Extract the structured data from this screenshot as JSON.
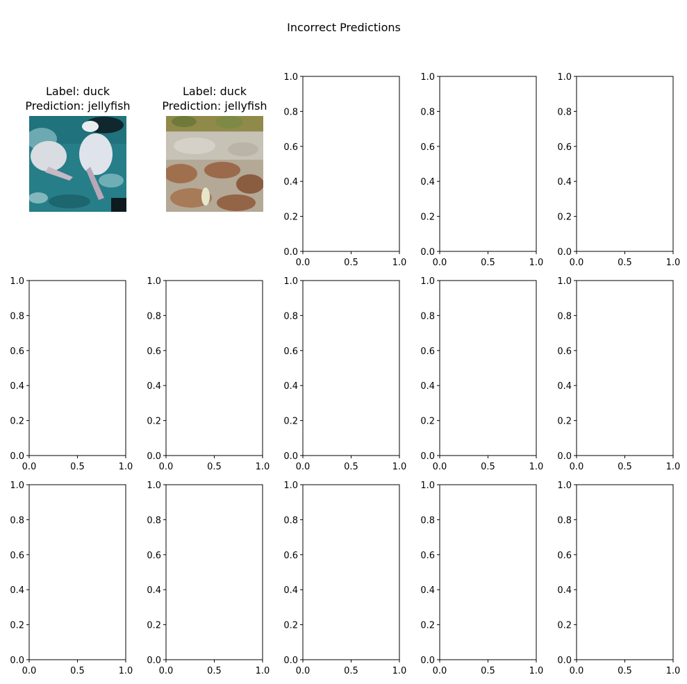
{
  "figure": {
    "suptitle": "Incorrect Predictions"
  },
  "chart_data": {
    "type": "image-grid",
    "title": "Incorrect Predictions",
    "rows": 3,
    "cols": 5,
    "image_panels": [
      {
        "title_line1": "Label: duck",
        "title_line2": "Prediction: jellyfish",
        "image_icon": "aquatic-photo-icon",
        "palette": [
          "#1f6f7a",
          "#2c8a94",
          "#d9dce0",
          "#0d1a1e"
        ]
      },
      {
        "title_line1": "Label: duck",
        "title_line2": "Prediction: jellyfish",
        "image_icon": "ground-photo-icon",
        "palette": [
          "#8f8a4a",
          "#bfb8a8",
          "#a0704e",
          "#e8e6c8"
        ]
      }
    ],
    "empty_axes": {
      "count": 13,
      "xlim": [
        0,
        1
      ],
      "ylim": [
        0,
        1
      ],
      "xticks": [
        "0.0",
        "0.5",
        "1.0"
      ],
      "yticks": [
        "0.0",
        "0.2",
        "0.4",
        "0.6",
        "0.8",
        "1.0"
      ]
    },
    "grid": false
  }
}
